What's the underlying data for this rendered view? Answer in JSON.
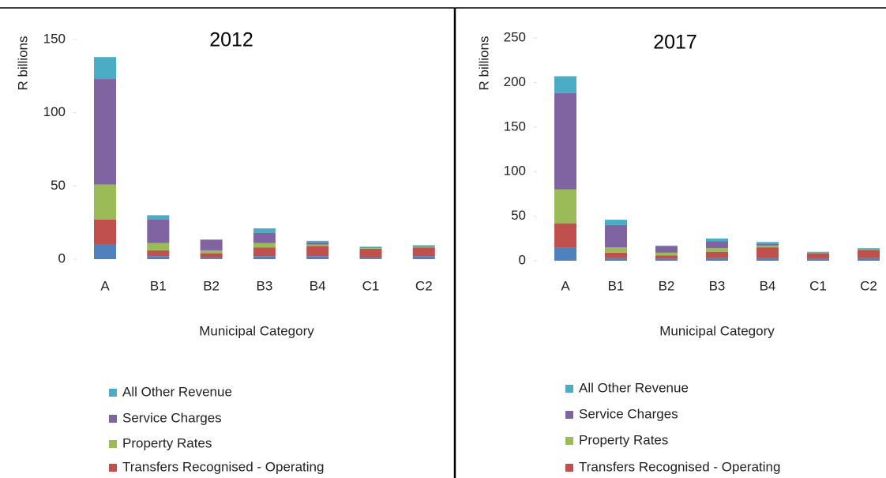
{
  "chart_data": [
    {
      "type": "bar",
      "stacked": true,
      "title": "2012",
      "ylabel": "R billions",
      "xlabel": "Municipal Category",
      "categories": [
        "A",
        "B1",
        "B2",
        "B3",
        "B4",
        "C1",
        "C2"
      ],
      "ylim": [
        0,
        150
      ],
      "yticks": [
        0,
        50,
        100,
        150
      ],
      "series": [
        {
          "name": null,
          "color": "#4f81bd",
          "values": [
            10,
            2,
            1,
            2,
            2,
            1,
            2
          ]
        },
        {
          "name": "Transfers Recognised - Operating",
          "color": "#c0504d",
          "values": [
            17,
            4,
            3,
            6,
            7,
            6,
            6
          ]
        },
        {
          "name": "Property Rates",
          "color": "#9bbb59",
          "values": [
            24,
            5,
            2,
            3,
            1,
            0.5,
            0.5
          ]
        },
        {
          "name": "Service Charges",
          "color": "#8064a2",
          "values": [
            72,
            16,
            7,
            7,
            1.5,
            0.5,
            0.5
          ]
        },
        {
          "name": "All Other Revenue",
          "color": "#4bacc6",
          "values": [
            15,
            3,
            0.5,
            3,
            1,
            0.5,
            0.5
          ]
        }
      ]
    },
    {
      "type": "bar",
      "stacked": true,
      "title": "2017",
      "ylabel": "R billions",
      "xlabel": "Municipal Category",
      "categories": [
        "A",
        "B1",
        "B2",
        "B3",
        "B4",
        "C1",
        "C2"
      ],
      "ylim": [
        0,
        250
      ],
      "yticks": [
        0,
        50,
        100,
        150,
        200,
        250
      ],
      "series": [
        {
          "name": null,
          "color": "#4f81bd",
          "values": [
            15,
            3,
            2,
            3,
            3,
            2,
            3
          ]
        },
        {
          "name": "Transfers Recognised - Operating",
          "color": "#c0504d",
          "values": [
            27,
            6,
            4,
            7,
            12,
            6,
            9
          ]
        },
        {
          "name": "Property Rates",
          "color": "#9bbb59",
          "values": [
            38,
            6,
            3,
            4,
            2,
            0.5,
            0.5
          ]
        },
        {
          "name": "Service Charges",
          "color": "#8064a2",
          "values": [
            108,
            25,
            7,
            8,
            2,
            0.5,
            0.5
          ]
        },
        {
          "name": "All Other Revenue",
          "color": "#4bacc6",
          "values": [
            19,
            6,
            1,
            3,
            2,
            1,
            1
          ]
        }
      ]
    }
  ]
}
